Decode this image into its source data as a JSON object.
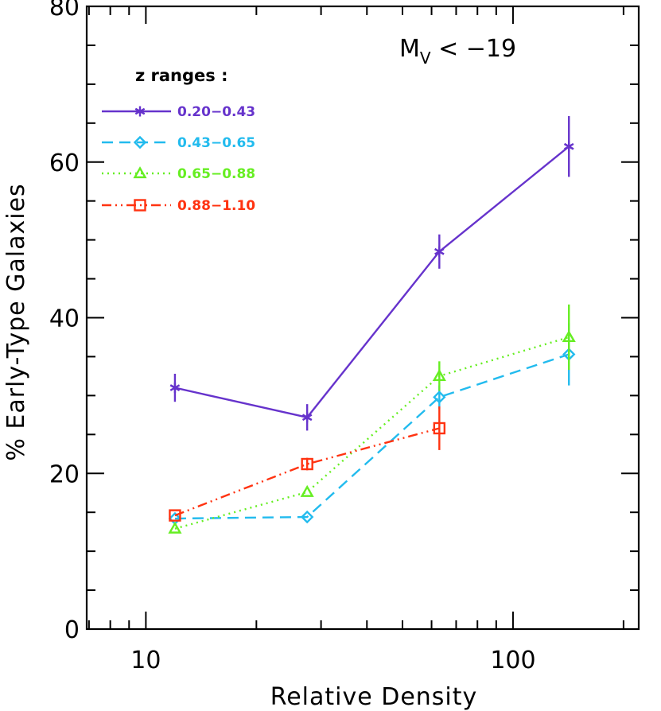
{
  "chart_data": {
    "type": "line",
    "title": "",
    "xlabel": "Relative Density",
    "ylabel": "% Early-Type Galaxies",
    "x_scale": "log",
    "xlim": [
      6.9,
      220
    ],
    "ylim": [
      0,
      80
    ],
    "x_major_ticks": [
      10,
      100
    ],
    "x_tick_labels": [
      "10",
      "100"
    ],
    "y_major_ticks": [
      0,
      20,
      40,
      60,
      80
    ],
    "y_tick_labels": [
      "0",
      "20",
      "40",
      "60",
      "80"
    ],
    "y_minor_step": 5,
    "grid": false,
    "legend_title": "z ranges :",
    "legend_position": "top-left",
    "annotation": {
      "base": "M",
      "sub": "V",
      "rest": " < −19"
    },
    "series": [
      {
        "name": "0.20−0.43",
        "color": "#6633CC",
        "dash": "solid",
        "marker": "asterisk",
        "x": [
          12,
          27.5,
          63,
          142
        ],
        "y": [
          31,
          27.2,
          48.5,
          62
        ],
        "err": [
          1.8,
          1.7,
          2.2,
          3.9
        ]
      },
      {
        "name": "0.43−0.65",
        "color": "#22BBEE",
        "dash": "dashed",
        "marker": "diamond",
        "x": [
          12,
          27.5,
          63,
          142
        ],
        "y": [
          14.2,
          14.4,
          29.8,
          35.3
        ],
        "err": [
          0,
          0,
          1.5,
          4.0
        ]
      },
      {
        "name": "0.65−0.88",
        "color": "#66EE22",
        "dash": "dotted",
        "marker": "triangle",
        "x": [
          12,
          27.5,
          63,
          142
        ],
        "y": [
          12.9,
          17.6,
          32.5,
          37.5
        ],
        "err": [
          0,
          0,
          1.9,
          4.2
        ]
      },
      {
        "name": "0.88−1.10",
        "color": "#FF3311",
        "dash": "dashdotdot",
        "marker": "square",
        "x": [
          12,
          27.5,
          63
        ],
        "y": [
          14.6,
          21.2,
          25.8
        ],
        "err": [
          0,
          0.8,
          2.8
        ]
      }
    ]
  }
}
